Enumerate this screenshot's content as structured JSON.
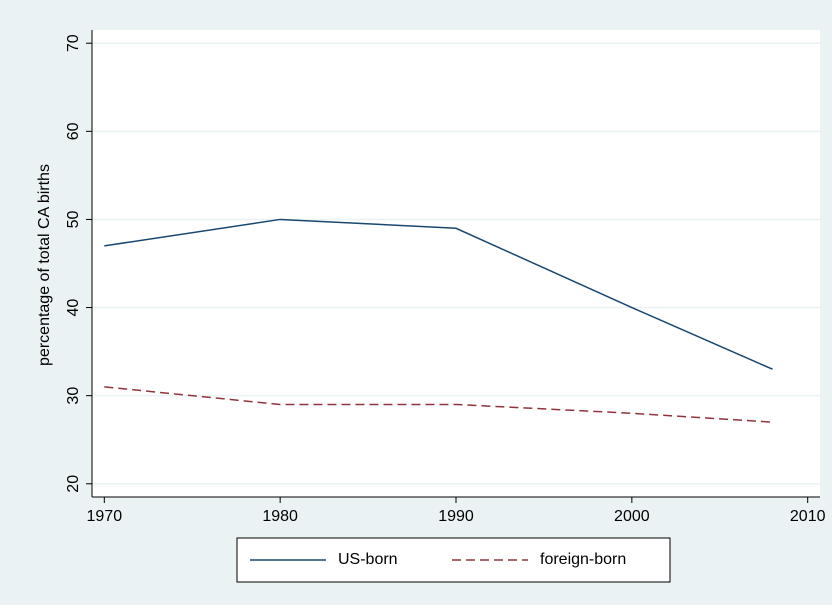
{
  "chart_data": {
    "type": "line",
    "ylabel": "percentage of total CA births",
    "x": [
      1970,
      1980,
      1990,
      2000,
      2008
    ],
    "series": [
      {
        "name": "US-born",
        "color": "#1a476f",
        "dash": false,
        "values": [
          47,
          50,
          49,
          40,
          33
        ]
      },
      {
        "name": "foreign-born",
        "color": "#90353b",
        "dash": true,
        "values": [
          31,
          29,
          29,
          28,
          27
        ]
      }
    ],
    "xlim": [
      1969.3,
      2010.7
    ],
    "xticks": [
      1970,
      1980,
      1990,
      2000,
      2010
    ],
    "ylim": [
      18.5,
      71.5
    ],
    "yticks": [
      20,
      30,
      40,
      50,
      60,
      70
    ],
    "grid": true,
    "legend": "bottom"
  }
}
